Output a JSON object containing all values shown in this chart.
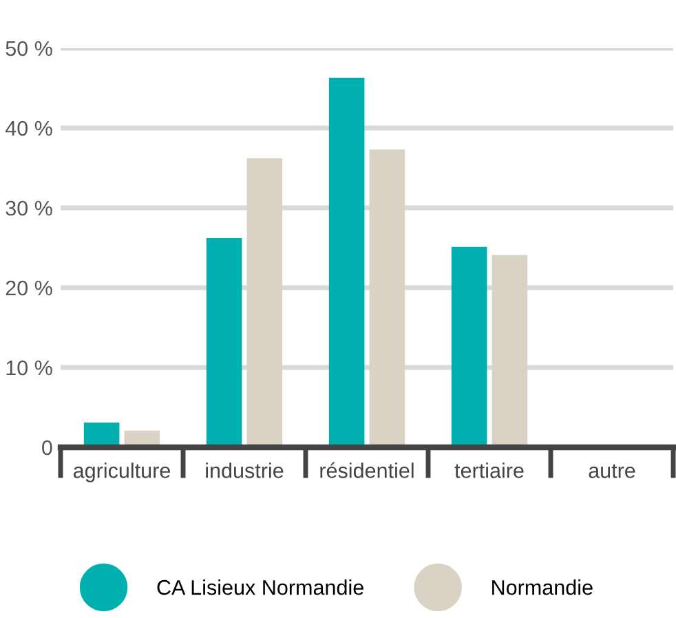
{
  "chart_data": {
    "type": "bar",
    "categories": [
      "agriculture",
      "industrie",
      "résidentiel",
      "tertiaire",
      "autre"
    ],
    "series": [
      {
        "name": "CA Lisieux Normandie",
        "color": "#00b0ae",
        "values": [
          3.1,
          26.2,
          46.3,
          25.1,
          null
        ]
      },
      {
        "name": "Normandie",
        "color": "#d9d2c5",
        "values": [
          2.1,
          36.2,
          37.3,
          24.1,
          null
        ]
      }
    ],
    "ylim": [
      0,
      50
    ],
    "yticks": [
      {
        "value": 0,
        "label": "0"
      },
      {
        "value": 10,
        "label": "10 %"
      },
      {
        "value": 20,
        "label": "20 %"
      },
      {
        "value": 30,
        "label": "30 %"
      },
      {
        "value": 40,
        "label": "40 %"
      },
      {
        "value": 50,
        "label": "50 %"
      }
    ],
    "grid": "y",
    "legend": "bottom"
  }
}
